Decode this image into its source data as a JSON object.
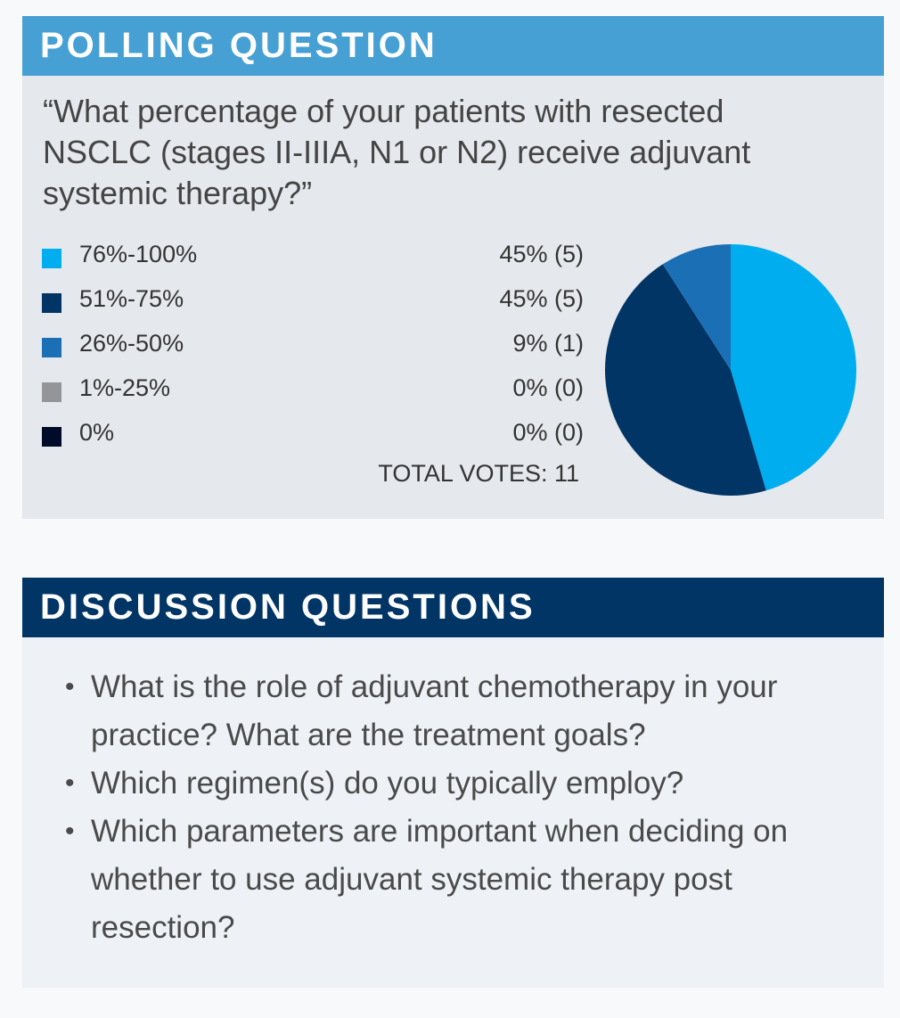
{
  "poll": {
    "header": "POLLING QUESTION",
    "question": "“What percentage of your patients with resected NSCLC (stages II-IIIA, N1 or N2) receive adjuvant systemic therapy?”",
    "total_label": "TOTAL VOTES: 11"
  },
  "chart_data": {
    "type": "pie",
    "title": "“What percentage of your patients with resected NSCLC (stages II-IIIA, N1 or N2) receive adjuvant systemic therapy?”",
    "categories": [
      "76%-100%",
      "51%-75%",
      "26%-50%",
      "1%-25%",
      "0%"
    ],
    "percent_labels": [
      "45% (5)",
      "45% (5)",
      "9% (1)",
      "0% (0)",
      "0% (0)"
    ],
    "values": [
      5,
      5,
      1,
      0,
      0
    ],
    "colors": [
      "#00aeef",
      "#003566",
      "#1b6fb5",
      "#939598",
      "#000a29"
    ],
    "total_votes": 11,
    "legend_position": "left"
  },
  "discussion": {
    "header": "DISCUSSION QUESTIONS",
    "bullet_symbol": "•",
    "items": [
      "What is the role of adjuvant chemotherapy in your practice? What are the treatment goals?",
      "Which regimen(s) do you typically employ?",
      "Which parameters are important when deciding on whether to use adjuvant systemic therapy post resection?"
    ]
  }
}
